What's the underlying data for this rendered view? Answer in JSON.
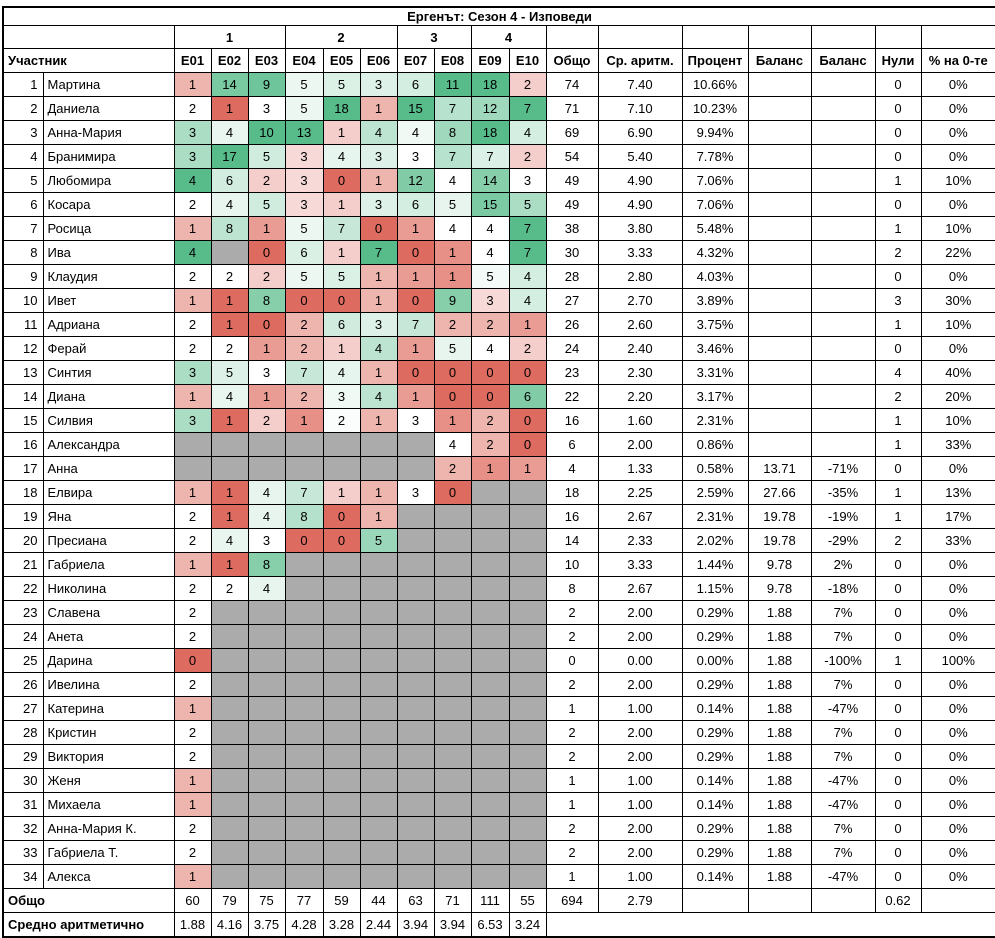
{
  "title": "Ергенът: Сезон 4 - Изповеди",
  "colors": {
    "scale_min_red": "#DD6B5F",
    "scale_mid_white": "#FFFFFF",
    "scale_max_green": "#57BB8A",
    "empty_cell_gray": "#ABABAB",
    "grid_border": "#000000"
  },
  "header": {
    "groups": [
      {
        "label": "",
        "span": 2
      },
      {
        "label": "1",
        "span": 3
      },
      {
        "label": "2",
        "span": 3
      },
      {
        "label": "3",
        "span": 2
      },
      {
        "label": "4",
        "span": 2
      },
      {
        "label": "",
        "span": 1
      },
      {
        "label": "",
        "span": 1
      },
      {
        "label": "",
        "span": 1
      },
      {
        "label": "",
        "span": 1
      },
      {
        "label": "",
        "span": 1
      },
      {
        "label": "",
        "span": 1
      },
      {
        "label": "",
        "span": 1
      }
    ],
    "participant": "Участник",
    "episodes": [
      "E01",
      "E02",
      "E03",
      "E04",
      "E05",
      "E06",
      "E07",
      "E08",
      "E09",
      "E10"
    ],
    "stats": [
      "Общо",
      "Ср. аритм.",
      "Процент",
      "Баланс",
      "Баланс",
      "Нули",
      "% на 0-те"
    ]
  },
  "rows": [
    {
      "n": "1",
      "name": "Мартина",
      "ep": [
        1,
        14,
        9,
        5,
        5,
        3,
        6,
        11,
        18,
        2
      ],
      "total": "74",
      "avg": "7.40",
      "percent": "10.66%",
      "bal1": "",
      "bal2": "",
      "zeros": "0",
      "zeroPct": "0%"
    },
    {
      "n": "2",
      "name": "Даниела",
      "ep": [
        2,
        1,
        3,
        5,
        18,
        1,
        15,
        7,
        12,
        7
      ],
      "total": "71",
      "avg": "7.10",
      "percent": "10.23%",
      "bal1": "",
      "bal2": "",
      "zeros": "0",
      "zeroPct": "0%"
    },
    {
      "n": "3",
      "name": "Анна-Мария",
      "ep": [
        3,
        4,
        10,
        13,
        1,
        4,
        4,
        8,
        18,
        4
      ],
      "total": "69",
      "avg": "6.90",
      "percent": "9.94%",
      "bal1": "",
      "bal2": "",
      "zeros": "0",
      "zeroPct": "0%"
    },
    {
      "n": "4",
      "name": "Бранимира",
      "ep": [
        3,
        17,
        5,
        3,
        4,
        3,
        3,
        7,
        7,
        2
      ],
      "total": "54",
      "avg": "5.40",
      "percent": "7.78%",
      "bal1": "",
      "bal2": "",
      "zeros": "0",
      "zeroPct": "0%"
    },
    {
      "n": "5",
      "name": "Любомира",
      "ep": [
        4,
        6,
        2,
        3,
        0,
        1,
        12,
        4,
        14,
        3
      ],
      "total": "49",
      "avg": "4.90",
      "percent": "7.06%",
      "bal1": "",
      "bal2": "",
      "zeros": "1",
      "zeroPct": "10%"
    },
    {
      "n": "6",
      "name": "Косара",
      "ep": [
        2,
        4,
        5,
        3,
        1,
        3,
        6,
        5,
        15,
        5
      ],
      "total": "49",
      "avg": "4.90",
      "percent": "7.06%",
      "bal1": "",
      "bal2": "",
      "zeros": "0",
      "zeroPct": "0%"
    },
    {
      "n": "7",
      "name": "Росица",
      "ep": [
        1,
        8,
        1,
        5,
        7,
        0,
        1,
        4,
        4,
        7
      ],
      "total": "38",
      "avg": "3.80",
      "percent": "5.48%",
      "bal1": "",
      "bal2": "",
      "zeros": "1",
      "zeroPct": "10%"
    },
    {
      "n": "8",
      "name": "Ива",
      "ep": [
        4,
        null,
        0,
        6,
        1,
        7,
        0,
        1,
        4,
        7
      ],
      "total": "30",
      "avg": "3.33",
      "percent": "4.32%",
      "bal1": "",
      "bal2": "",
      "zeros": "2",
      "zeroPct": "22%"
    },
    {
      "n": "9",
      "name": "Клаудия",
      "ep": [
        2,
        2,
        2,
        5,
        5,
        1,
        1,
        1,
        5,
        4
      ],
      "total": "28",
      "avg": "2.80",
      "percent": "4.03%",
      "bal1": "",
      "bal2": "",
      "zeros": "0",
      "zeroPct": "0%"
    },
    {
      "n": "10",
      "name": "Ивет",
      "ep": [
        1,
        1,
        8,
        0,
        0,
        1,
        0,
        9,
        3,
        4
      ],
      "total": "27",
      "avg": "2.70",
      "percent": "3.89%",
      "bal1": "",
      "bal2": "",
      "zeros": "3",
      "zeroPct": "30%"
    },
    {
      "n": "11",
      "name": "Адриана",
      "ep": [
        2,
        1,
        0,
        2,
        6,
        3,
        7,
        2,
        2,
        1
      ],
      "total": "26",
      "avg": "2.60",
      "percent": "3.75%",
      "bal1": "",
      "bal2": "",
      "zeros": "1",
      "zeroPct": "10%"
    },
    {
      "n": "12",
      "name": "Ферай",
      "ep": [
        2,
        2,
        1,
        2,
        1,
        4,
        1,
        5,
        4,
        2
      ],
      "total": "24",
      "avg": "2.40",
      "percent": "3.46%",
      "bal1": "",
      "bal2": "",
      "zeros": "0",
      "zeroPct": "0%"
    },
    {
      "n": "13",
      "name": "Синтия",
      "ep": [
        3,
        5,
        3,
        7,
        4,
        1,
        0,
        0,
        0,
        0
      ],
      "total": "23",
      "avg": "2.30",
      "percent": "3.31%",
      "bal1": "",
      "bal2": "",
      "zeros": "4",
      "zeroPct": "40%"
    },
    {
      "n": "14",
      "name": "Диана",
      "ep": [
        1,
        4,
        1,
        2,
        3,
        4,
        1,
        0,
        0,
        6
      ],
      "total": "22",
      "avg": "2.20",
      "percent": "3.17%",
      "bal1": "",
      "bal2": "",
      "zeros": "2",
      "zeroPct": "20%"
    },
    {
      "n": "15",
      "name": "Силвия",
      "ep": [
        3,
        1,
        2,
        1,
        2,
        1,
        3,
        1,
        2,
        0
      ],
      "total": "16",
      "avg": "1.60",
      "percent": "2.31%",
      "bal1": "",
      "bal2": "",
      "zeros": "1",
      "zeroPct": "10%"
    },
    {
      "n": "16",
      "name": "Александра",
      "ep": [
        null,
        null,
        null,
        null,
        null,
        null,
        null,
        4,
        2,
        0
      ],
      "total": "6",
      "avg": "2.00",
      "percent": "0.86%",
      "bal1": "",
      "bal2": "",
      "zeros": "1",
      "zeroPct": "33%"
    },
    {
      "n": "17",
      "name": "Анна",
      "ep": [
        null,
        null,
        null,
        null,
        null,
        null,
        null,
        2,
        1,
        1
      ],
      "total": "4",
      "avg": "1.33",
      "percent": "0.58%",
      "bal1": "13.71",
      "bal2": "-71%",
      "zeros": "0",
      "zeroPct": "0%"
    },
    {
      "n": "18",
      "name": "Елвира",
      "ep": [
        1,
        1,
        4,
        7,
        1,
        1,
        3,
        0,
        null,
        null
      ],
      "total": "18",
      "avg": "2.25",
      "percent": "2.59%",
      "bal1": "27.66",
      "bal2": "-35%",
      "zeros": "1",
      "zeroPct": "13%"
    },
    {
      "n": "19",
      "name": "Яна",
      "ep": [
        2,
        1,
        4,
        8,
        0,
        1,
        null,
        null,
        null,
        null
      ],
      "total": "16",
      "avg": "2.67",
      "percent": "2.31%",
      "bal1": "19.78",
      "bal2": "-19%",
      "zeros": "1",
      "zeroPct": "17%"
    },
    {
      "n": "20",
      "name": "Пресиана",
      "ep": [
        2,
        4,
        3,
        0,
        0,
        5,
        null,
        null,
        null,
        null
      ],
      "total": "14",
      "avg": "2.33",
      "percent": "2.02%",
      "bal1": "19.78",
      "bal2": "-29%",
      "zeros": "2",
      "zeroPct": "33%"
    },
    {
      "n": "21",
      "name": "Габриела",
      "ep": [
        1,
        1,
        8,
        null,
        null,
        null,
        null,
        null,
        null,
        null
      ],
      "total": "10",
      "avg": "3.33",
      "percent": "1.44%",
      "bal1": "9.78",
      "bal2": "2%",
      "zeros": "0",
      "zeroPct": "0%"
    },
    {
      "n": "22",
      "name": "Николина",
      "ep": [
        2,
        2,
        4,
        null,
        null,
        null,
        null,
        null,
        null,
        null
      ],
      "total": "8",
      "avg": "2.67",
      "percent": "1.15%",
      "bal1": "9.78",
      "bal2": "-18%",
      "zeros": "0",
      "zeroPct": "0%"
    },
    {
      "n": "23",
      "name": "Славена",
      "ep": [
        2,
        null,
        null,
        null,
        null,
        null,
        null,
        null,
        null,
        null
      ],
      "total": "2",
      "avg": "2.00",
      "percent": "0.29%",
      "bal1": "1.88",
      "bal2": "7%",
      "zeros": "0",
      "zeroPct": "0%"
    },
    {
      "n": "24",
      "name": "Анета",
      "ep": [
        2,
        null,
        null,
        null,
        null,
        null,
        null,
        null,
        null,
        null
      ],
      "total": "2",
      "avg": "2.00",
      "percent": "0.29%",
      "bal1": "1.88",
      "bal2": "7%",
      "zeros": "0",
      "zeroPct": "0%"
    },
    {
      "n": "25",
      "name": "Дарина",
      "ep": [
        0,
        null,
        null,
        null,
        null,
        null,
        null,
        null,
        null,
        null
      ],
      "total": "0",
      "avg": "0.00",
      "percent": "0.00%",
      "bal1": "1.88",
      "bal2": "-100%",
      "zeros": "1",
      "zeroPct": "100%"
    },
    {
      "n": "26",
      "name": "Ивелина",
      "ep": [
        2,
        null,
        null,
        null,
        null,
        null,
        null,
        null,
        null,
        null
      ],
      "total": "2",
      "avg": "2.00",
      "percent": "0.29%",
      "bal1": "1.88",
      "bal2": "7%",
      "zeros": "0",
      "zeroPct": "0%"
    },
    {
      "n": "27",
      "name": "Катерина",
      "ep": [
        1,
        null,
        null,
        null,
        null,
        null,
        null,
        null,
        null,
        null
      ],
      "total": "1",
      "avg": "1.00",
      "percent": "0.14%",
      "bal1": "1.88",
      "bal2": "-47%",
      "zeros": "0",
      "zeroPct": "0%"
    },
    {
      "n": "28",
      "name": "Кристин",
      "ep": [
        2,
        null,
        null,
        null,
        null,
        null,
        null,
        null,
        null,
        null
      ],
      "total": "2",
      "avg": "2.00",
      "percent": "0.29%",
      "bal1": "1.88",
      "bal2": "7%",
      "zeros": "0",
      "zeroPct": "0%"
    },
    {
      "n": "29",
      "name": "Виктория",
      "ep": [
        2,
        null,
        null,
        null,
        null,
        null,
        null,
        null,
        null,
        null
      ],
      "total": "2",
      "avg": "2.00",
      "percent": "0.29%",
      "bal1": "1.88",
      "bal2": "7%",
      "zeros": "0",
      "zeroPct": "0%"
    },
    {
      "n": "30",
      "name": "Женя",
      "ep": [
        1,
        null,
        null,
        null,
        null,
        null,
        null,
        null,
        null,
        null
      ],
      "total": "1",
      "avg": "1.00",
      "percent": "0.14%",
      "bal1": "1.88",
      "bal2": "-47%",
      "zeros": "0",
      "zeroPct": "0%"
    },
    {
      "n": "31",
      "name": "Михаела",
      "ep": [
        1,
        null,
        null,
        null,
        null,
        null,
        null,
        null,
        null,
        null
      ],
      "total": "1",
      "avg": "1.00",
      "percent": "0.14%",
      "bal1": "1.88",
      "bal2": "-47%",
      "zeros": "0",
      "zeroPct": "0%"
    },
    {
      "n": "32",
      "name": "Анна-Мария К.",
      "ep": [
        2,
        null,
        null,
        null,
        null,
        null,
        null,
        null,
        null,
        null
      ],
      "total": "2",
      "avg": "2.00",
      "percent": "0.29%",
      "bal1": "1.88",
      "bal2": "7%",
      "zeros": "0",
      "zeroPct": "0%"
    },
    {
      "n": "33",
      "name": "Габриела Т.",
      "ep": [
        2,
        null,
        null,
        null,
        null,
        null,
        null,
        null,
        null,
        null
      ],
      "total": "2",
      "avg": "2.00",
      "percent": "0.29%",
      "bal1": "1.88",
      "bal2": "7%",
      "zeros": "0",
      "zeroPct": "0%"
    },
    {
      "n": "34",
      "name": "Алекса",
      "ep": [
        1,
        null,
        null,
        null,
        null,
        null,
        null,
        null,
        null,
        null
      ],
      "total": "1",
      "avg": "1.00",
      "percent": "0.14%",
      "bal1": "1.88",
      "bal2": "-47%",
      "zeros": "0",
      "zeroPct": "0%"
    }
  ],
  "footer": {
    "totals": {
      "label": "Общо",
      "ep": [
        "60",
        "79",
        "75",
        "77",
        "59",
        "44",
        "63",
        "71",
        "111",
        "55"
      ],
      "total": "694",
      "avg": "2.79",
      "percent": "",
      "bal1": "",
      "bal2": "",
      "zeros": "0.62",
      "zeroPct": ""
    },
    "means": {
      "label": "Средно аритметично",
      "ep": [
        "1.88",
        "4.16",
        "3.75",
        "4.28",
        "3.28",
        "2.44",
        "3.94",
        "3.94",
        "6.53",
        "3.24"
      ],
      "merged_right": ""
    }
  }
}
